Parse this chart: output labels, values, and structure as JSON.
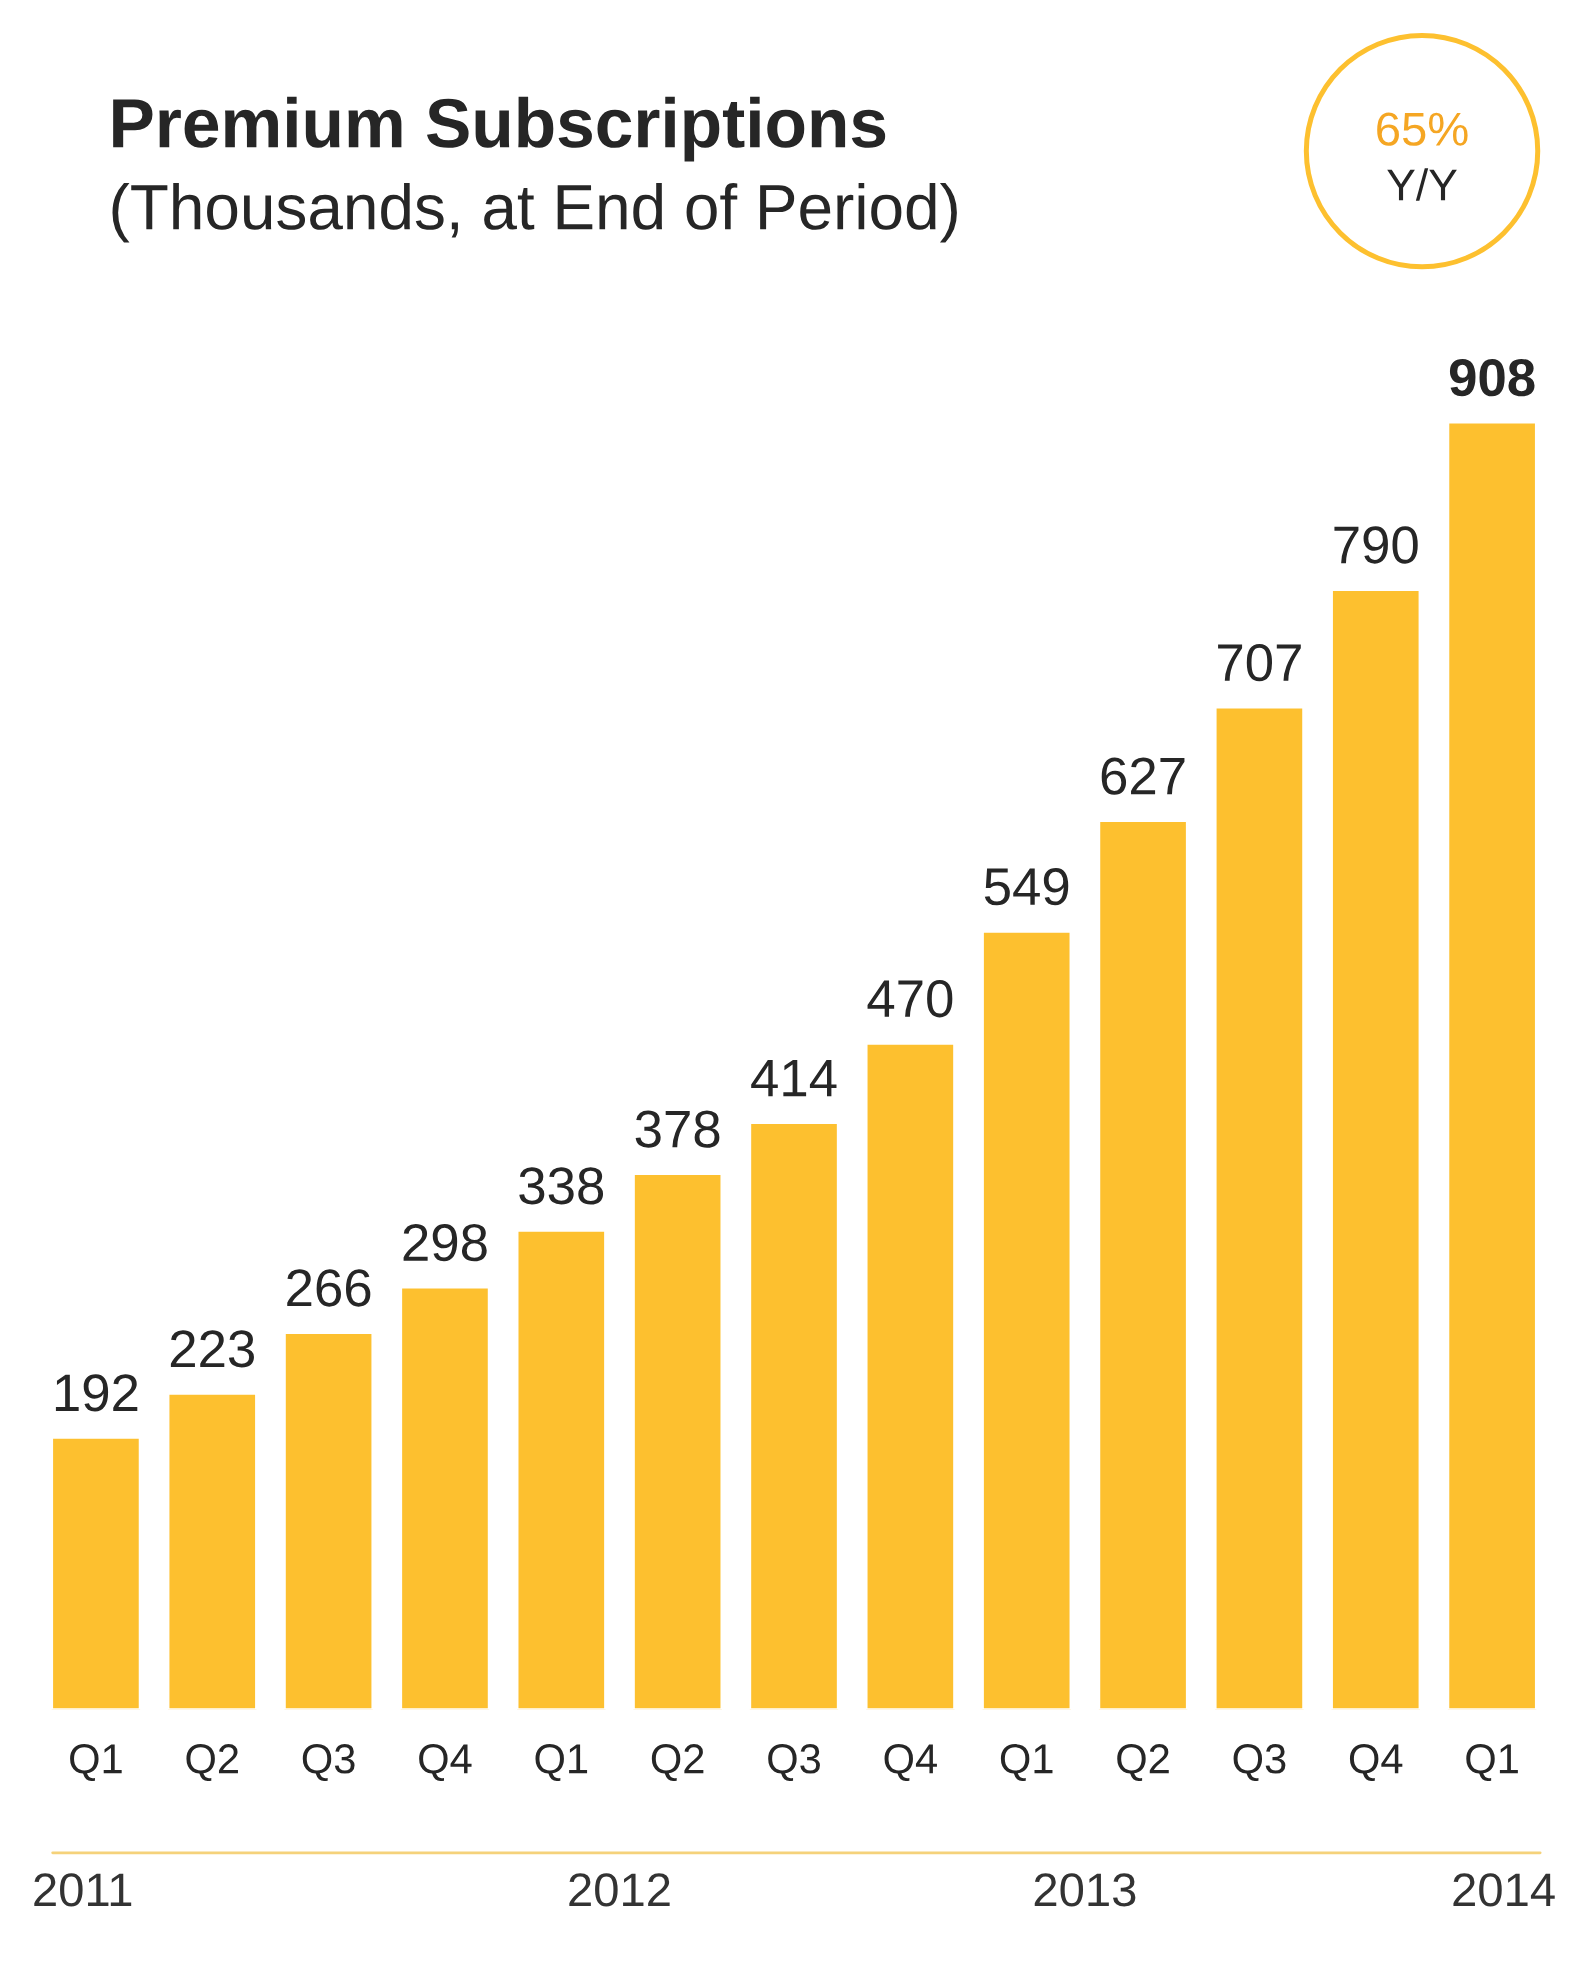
{
  "chart_data": {
    "type": "bar",
    "title": "Premium Subscriptions",
    "subtitle": "(Thousands, at End of Period)",
    "categories": [
      "Q1",
      "Q2",
      "Q3",
      "Q4",
      "Q1",
      "Q2",
      "Q3",
      "Q4",
      "Q1",
      "Q2",
      "Q3",
      "Q4",
      "Q1"
    ],
    "values": [
      192,
      223,
      266,
      298,
      338,
      378,
      414,
      470,
      549,
      627,
      707,
      790,
      908
    ],
    "color": "#fdc02f",
    "data_labels": true,
    "grid": false,
    "legend": false,
    "annotations": [
      "65%",
      "Y/Y",
      "2011",
      "2012",
      "2013",
      "2014"
    ]
  }
}
